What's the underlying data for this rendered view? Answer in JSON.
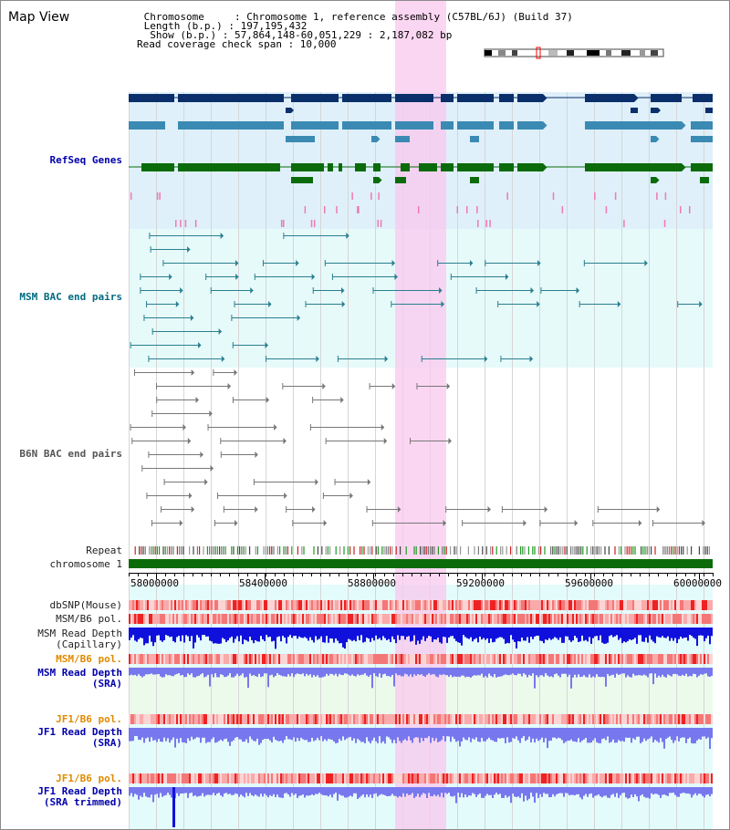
{
  "view_title": "Map View",
  "header": {
    "chromosome_line": " Chromosome     : Chromosome 1, reference assembly (C57BL/6J) (Build 37)",
    "length_line": " Length (b.p.) : 197,195,432",
    "show_line": "  Show (b.p.) : 57,864,148-60,051,229 : 2,187,082 bp",
    "span_line": "Read coverage check span : 10,000"
  },
  "track_labels": {
    "refseq": "RefSeq Genes",
    "msm_bac": "MSM BAC end pairs",
    "b6n_bac": "B6N BAC end pairs",
    "repeat": "Repeat",
    "chromosome": "chromosome 1",
    "dbsnp": "dbSNP(Mouse)",
    "msm_b6_pol_1": "MSM/B6 pol.",
    "msm_read_depth_cap": "MSM Read Depth\n(Capillary)",
    "msm_b6_pol_2": "MSM/B6 pol.",
    "msm_read_depth_sra": "MSM Read Depth\n(SRA)",
    "jf1_b6_pol_1": "JF1/B6 pol.",
    "jf1_read_depth_sra": "JF1 Read Depth\n(SRA)",
    "jf1_b6_pol_2": "JF1/B6 pol.",
    "jf1_read_depth_trim": "JF1 Read Depth\n(SRA trimmed)"
  },
  "axis_ticks": [
    "58000000",
    "58400000",
    "58800000",
    "59200000",
    "59600000",
    "60000000"
  ],
  "colors": {
    "refseq_dark": "#0a2f6b",
    "refseq_light": "#3b8ab3",
    "refseq_green": "#0b6b0b",
    "msm_bac": "#2a7f8f",
    "b6n_bac": "#777777",
    "highlight": "#f9c8ee",
    "chromosome_bar": "#0b6b0b",
    "depth_blue": "#1010dd",
    "depth_light": "#7777ee",
    "pol_red": "#ee3333"
  }
}
